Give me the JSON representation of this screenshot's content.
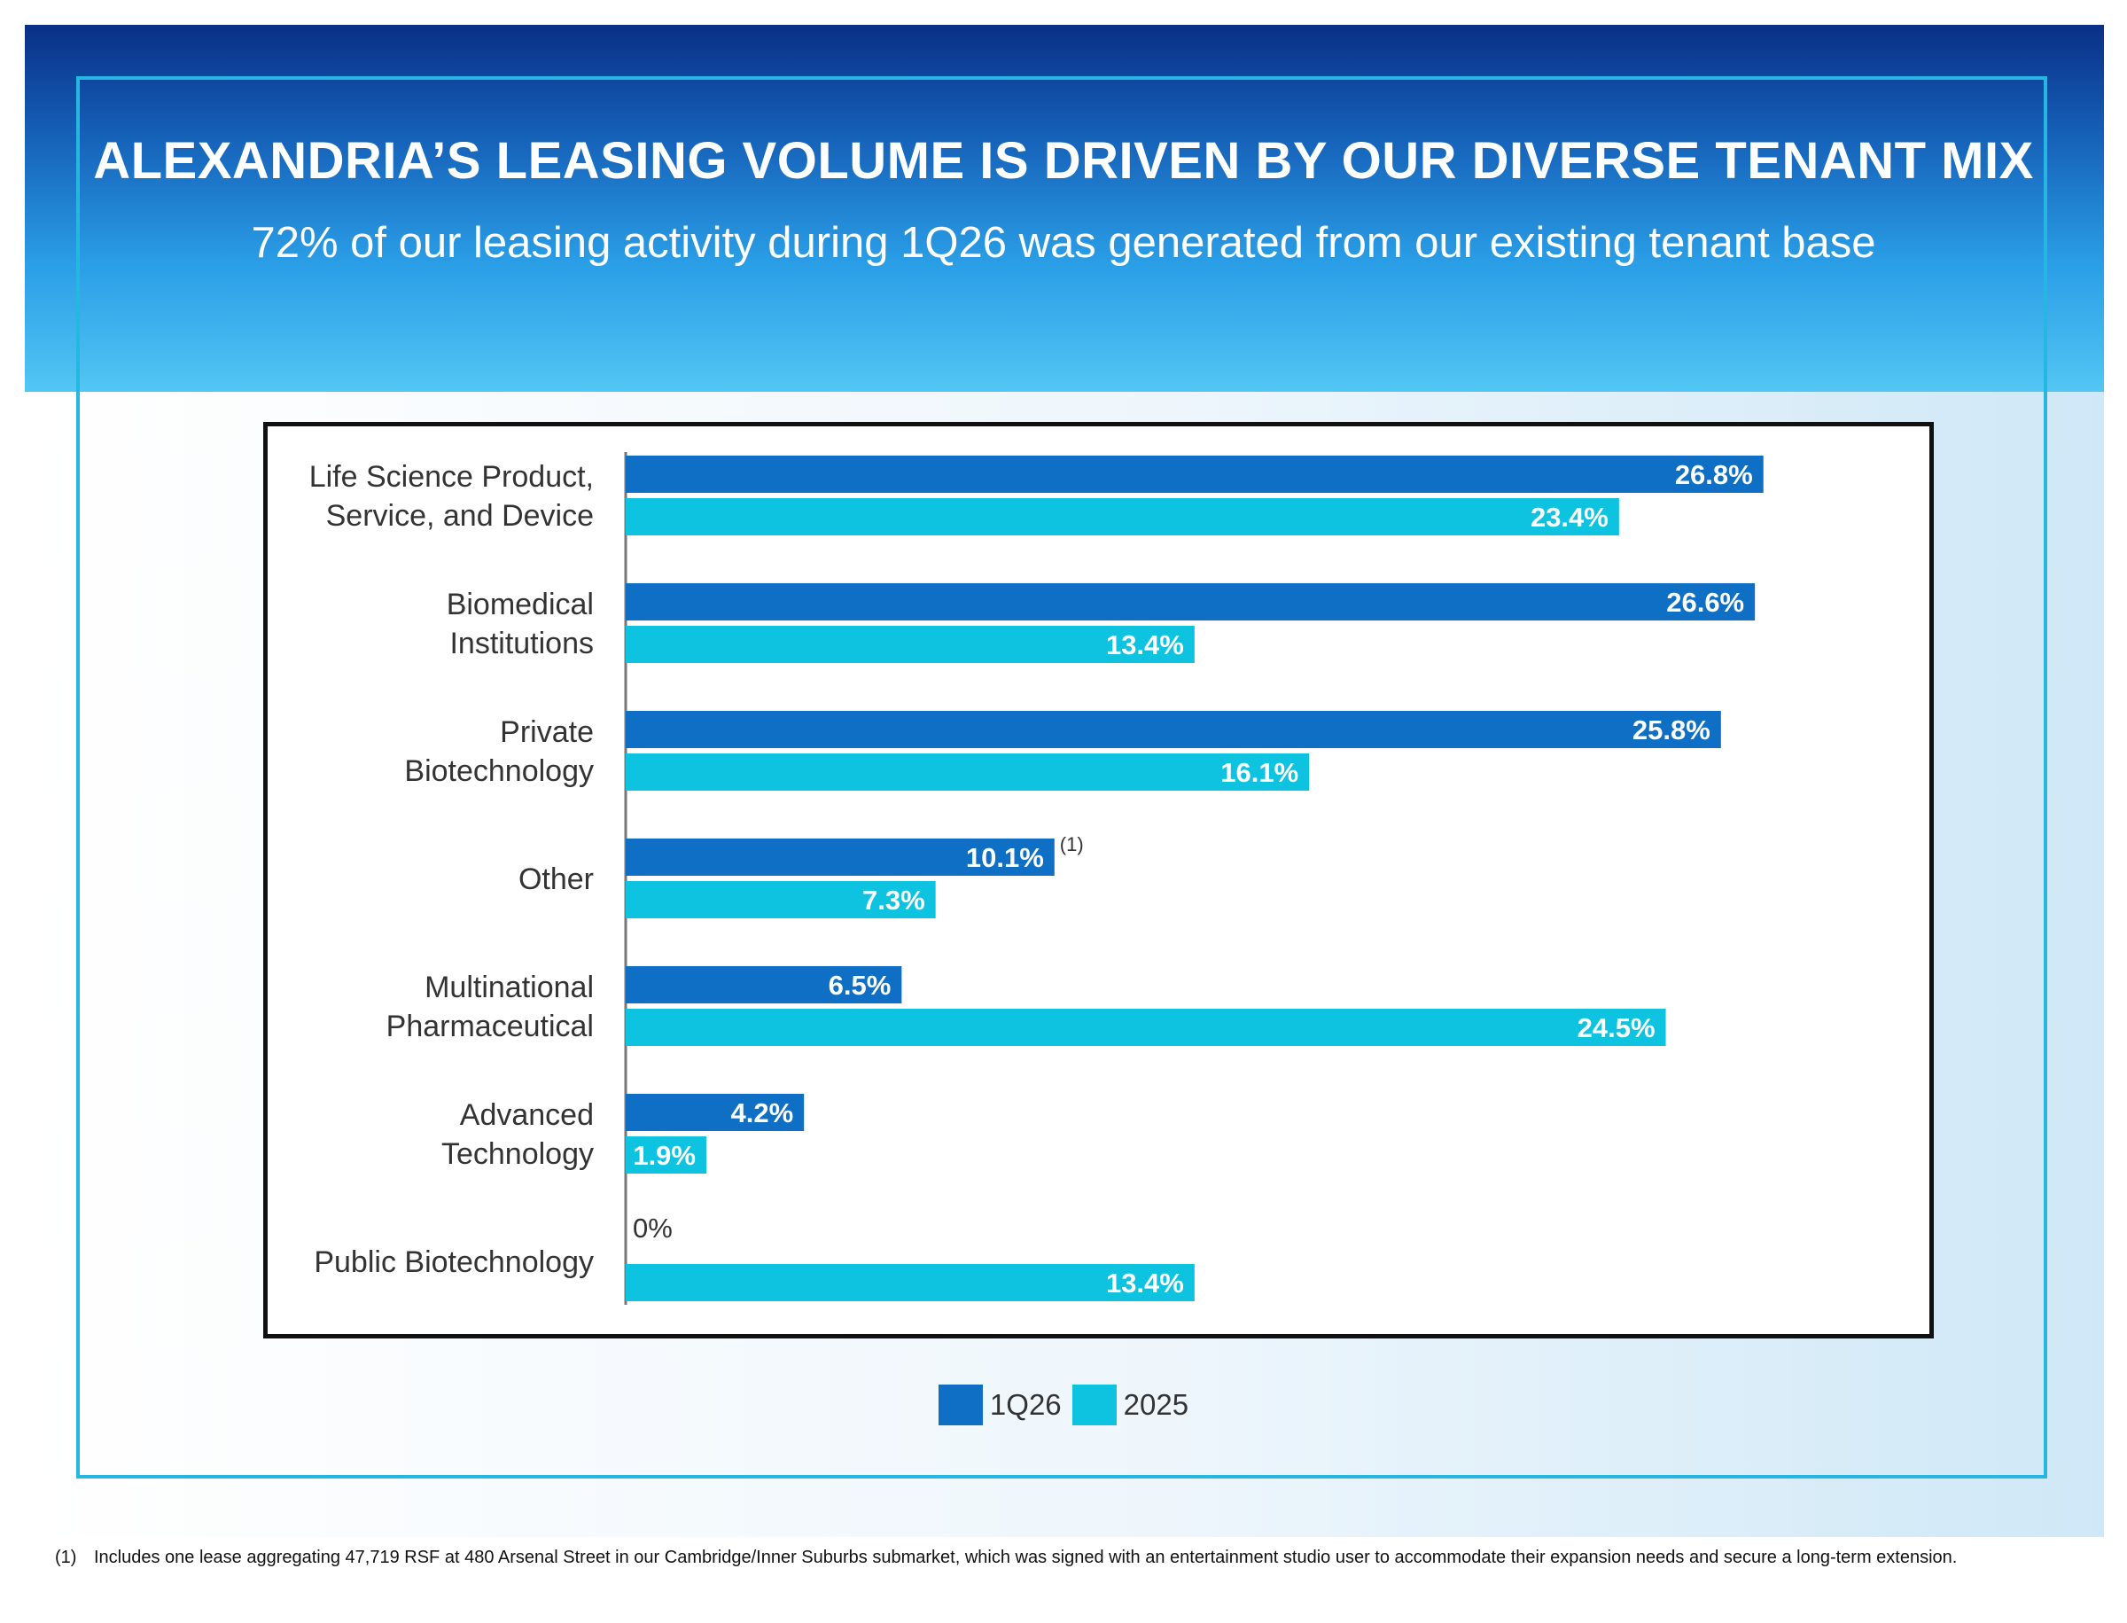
{
  "header": {
    "title": "ALEXANDRIA’S LEASING VOLUME IS DRIVEN BY OUR DIVERSE TENANT MIX",
    "subtitle": "72% of our leasing activity during 1Q26 was generated from our existing tenant base"
  },
  "colors": {
    "series_1q26": "#0e6fc4",
    "series_2025": "#0dc3e0",
    "axis": "#777777",
    "category_text": "#333333"
  },
  "chart_data": {
    "type": "bar",
    "orientation": "horizontal",
    "title": "",
    "xlabel": "",
    "ylabel": "",
    "xlim": [
      0,
      30
    ],
    "grid": false,
    "legend_position": "bottom-center",
    "categories": [
      [
        "Life Science Product,",
        "Service, and Device"
      ],
      [
        "Biomedical",
        "Institutions"
      ],
      [
        "Private",
        "Biotechnology"
      ],
      [
        "Other"
      ],
      [
        "Multinational",
        "Pharmaceutical"
      ],
      [
        "Advanced",
        "Technology"
      ],
      [
        "Public Biotechnology"
      ]
    ],
    "series": [
      {
        "name": "1Q26",
        "values": [
          26.8,
          26.6,
          25.8,
          10.1,
          6.5,
          4.2,
          0
        ],
        "labels": [
          "26.8%",
          "26.6%",
          "25.8%",
          "10.1%",
          "6.5%",
          "4.2%",
          "0%"
        ]
      },
      {
        "name": "2025",
        "values": [
          23.4,
          13.4,
          16.1,
          7.3,
          24.5,
          1.9,
          13.4
        ],
        "labels": [
          "23.4%",
          "13.4%",
          "16.1%",
          "7.3%",
          "24.5%",
          "1.9%",
          "13.4%"
        ]
      }
    ],
    "annotations": [
      {
        "category": "Other",
        "series": "1Q26",
        "text": "(1)"
      }
    ]
  },
  "legend": {
    "items": [
      {
        "label": "1Q26"
      },
      {
        "label": "2025"
      }
    ]
  },
  "footnote": {
    "marker": "(1)",
    "text": "Includes one lease aggregating 47,719 RSF at 480 Arsenal Street in our Cambridge/Inner Suburbs submarket, which was signed with an entertainment studio user to accommodate their expansion needs and secure a long-term extension."
  }
}
